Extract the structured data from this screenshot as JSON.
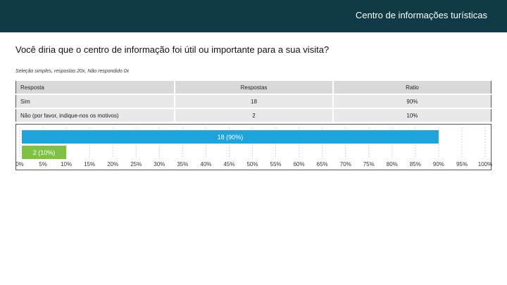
{
  "header": {
    "title": "Centro de informações turísticas"
  },
  "question": "Você diria que o centro de informação foi útil ou importante para a sua visita?",
  "meta": "Seleção simples, respostas 20x, Não respondido 0x",
  "table": {
    "headers": [
      "Resposta",
      "Respostas",
      "Ratio"
    ],
    "rows": [
      {
        "answer": "Sim",
        "count": "18",
        "ratio": "90%"
      },
      {
        "answer": "Não (por favor, indique-nos os motivos)",
        "count": "2",
        "ratio": "10%"
      }
    ]
  },
  "chart_data": {
    "type": "bar",
    "orientation": "horizontal",
    "series": [
      {
        "label": "18 (90%)",
        "value": 90,
        "color": "#1ea3dc"
      },
      {
        "label": "2 (10%)",
        "value": 10,
        "color": "#7dc242"
      }
    ],
    "ticks": [
      "0%",
      "5%",
      "10%",
      "15%",
      "20%",
      "25%",
      "30%",
      "35%",
      "40%",
      "45%",
      "50%",
      "55%",
      "60%",
      "65%",
      "70%",
      "75%",
      "80%",
      "85%",
      "90%",
      "95%",
      "100%"
    ],
    "xlim": [
      0,
      100
    ],
    "grid": true
  }
}
